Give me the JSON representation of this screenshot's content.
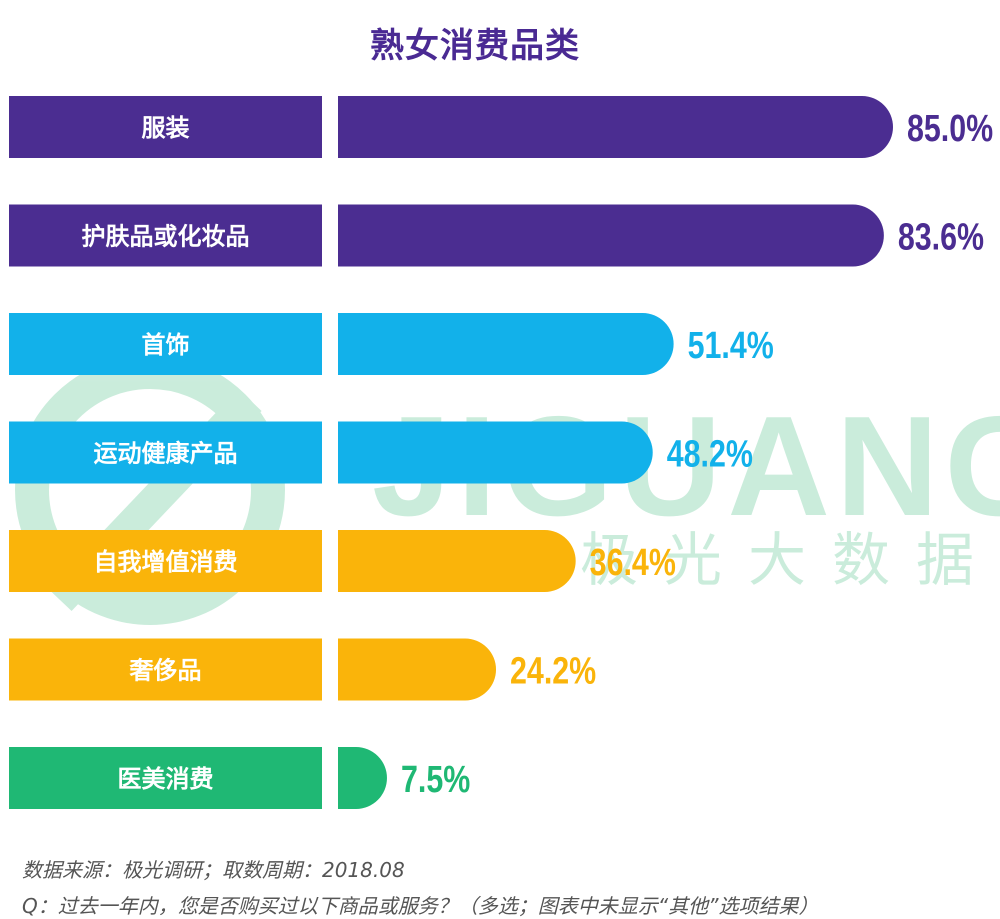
{
  "colors": {
    "purple": "#4b2d91",
    "blue": "#12b1ea",
    "orange": "#fab40a",
    "green": "#1fb874",
    "watermark": "#c5ead8"
  },
  "watermark": {
    "brand": "JIGUANG",
    "brand_cn": "极光大数据"
  },
  "chart_data": {
    "type": "bar",
    "orientation": "horizontal",
    "title": "熟女消费品类",
    "unit": "%",
    "categories": [
      "服装",
      "护肤品或化妆品",
      "首饰",
      "运动健康产品",
      "自我增值消费",
      "奢侈品",
      "医美消费"
    ],
    "values": [
      85.0,
      83.6,
      51.4,
      48.2,
      36.4,
      24.2,
      7.5
    ],
    "value_labels": [
      "85.0%",
      "83.6%",
      "51.4%",
      "48.2%",
      "36.4%",
      "24.2%",
      "7.5%"
    ],
    "bar_color_keys": [
      "purple",
      "purple",
      "blue",
      "blue",
      "orange",
      "orange",
      "green"
    ],
    "xlim": [
      0,
      100
    ],
    "grid": false,
    "legend": "none"
  },
  "footer": {
    "source": "数据来源：极光调研；取数周期：2018.08",
    "question": "Q：过去一年内，您是否购买过以下商品或服务？（多选；图表中未显示“其他”选项结果）"
  }
}
